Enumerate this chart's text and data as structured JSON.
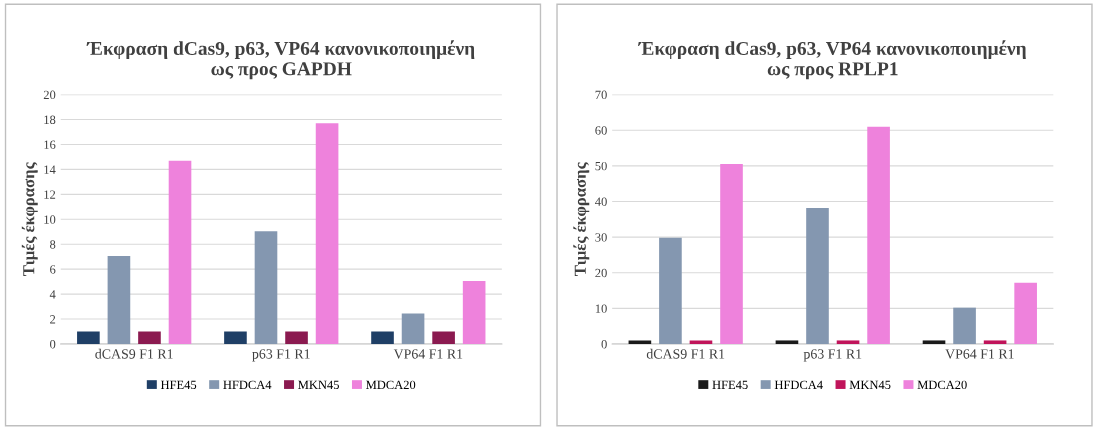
{
  "chart_data": [
    {
      "type": "bar",
      "title": "Έκφραση dCas9, p63, VP64 κανονικοποιημένη\nως προς GAPDH",
      "ylabel": "Τιμές έκφρασης",
      "categories": [
        "dCAS9 F1 R1",
        "p63 F1 R1",
        "VP64 F1 R1"
      ],
      "series": [
        {
          "name": "HFE45",
          "color": "#1f3f66",
          "values": [
            1,
            1,
            1
          ]
        },
        {
          "name": "HFDCA4",
          "color": "#8497b0",
          "values": [
            7.05,
            9.05,
            2.45
          ]
        },
        {
          "name": "MKN45",
          "color": "#8b1a50",
          "values": [
            1,
            1,
            1
          ]
        },
        {
          "name": "MDCA20",
          "color": "#ee82dc",
          "values": [
            14.7,
            17.7,
            5.05
          ]
        }
      ],
      "ylim": [
        0,
        20
      ],
      "yticks": [
        0,
        2,
        4,
        6,
        8,
        10,
        12,
        14,
        16,
        18,
        20
      ],
      "grid": "y",
      "legend": "bottom"
    },
    {
      "type": "bar",
      "title": "Έκφραση dCas9, p63, VP64 κανονικοποιημένη\nως προς RPLP1",
      "ylabel": "Τιμές έκφρασης",
      "categories": [
        "dCAS9 F1 R1",
        "p63 F1 R1",
        "VP64 F1 R1"
      ],
      "series": [
        {
          "name": "HFE45",
          "color": "#1a1a1a",
          "values": [
            1,
            1,
            1
          ]
        },
        {
          "name": "HFDCA4",
          "color": "#8497b0",
          "values": [
            29.8,
            38.2,
            10.2
          ]
        },
        {
          "name": "MKN45",
          "color": "#c0145a",
          "values": [
            1,
            1,
            1
          ]
        },
        {
          "name": "MDCA20",
          "color": "#ee82dc",
          "values": [
            50.5,
            61,
            17.2
          ]
        }
      ],
      "ylim": [
        0,
        70
      ],
      "yticks": [
        0,
        10,
        20,
        30,
        40,
        50,
        60,
        70
      ],
      "grid": "y",
      "legend": "bottom"
    }
  ]
}
